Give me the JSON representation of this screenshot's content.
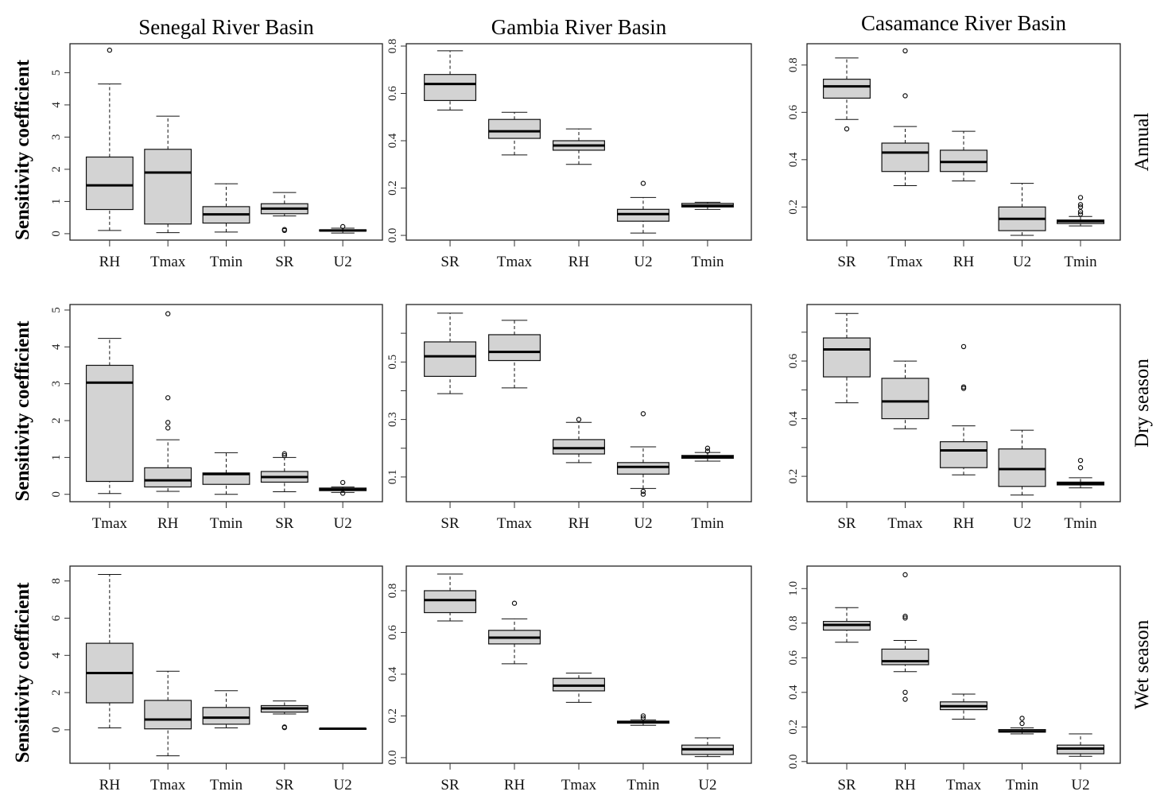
{
  "chart_data": {
    "type": "boxplot",
    "column_titles": [
      "Senegal River Basin",
      "Gambia River Basin",
      "Casamance River Basin"
    ],
    "row_labels": [
      "Annual",
      "Dry season",
      "Wet season"
    ],
    "ylabel": "Sensitivity coefficient",
    "box_color": "#d3d3d3",
    "panels": [
      {
        "basin": "Senegal River Basin",
        "period": "Annual",
        "ylim": [
          -0.2,
          5.9
        ],
        "ticks": [
          0,
          1,
          2,
          3,
          4,
          5
        ],
        "tick_labels": [
          "0",
          "1",
          "2",
          "3",
          "4",
          "5"
        ],
        "boxes": [
          {
            "label": "RH",
            "stats": [
              0.1,
              0.75,
              1.5,
              2.38,
              4.65
            ],
            "outliers": [
              5.7
            ]
          },
          {
            "label": "Tmax",
            "stats": [
              0.03,
              0.3,
              1.9,
              2.62,
              3.65
            ],
            "outliers": []
          },
          {
            "label": "Tmin",
            "stats": [
              0.05,
              0.33,
              0.6,
              0.84,
              1.55
            ],
            "outliers": []
          },
          {
            "label": "SR",
            "stats": [
              0.55,
              0.62,
              0.78,
              0.93,
              1.28
            ],
            "outliers": [
              0.1,
              0.13
            ]
          },
          {
            "label": "U2",
            "stats": [
              0.02,
              0.08,
              0.1,
              0.12,
              0.17
            ],
            "outliers": [
              0.22
            ]
          }
        ]
      },
      {
        "basin": "Gambia River Basin",
        "period": "Annual",
        "ylim": [
          -0.02,
          0.81
        ],
        "ticks": [
          0,
          0.2,
          0.4,
          0.6,
          0.8
        ],
        "tick_labels": [
          "0.0",
          "0.2",
          "0.4",
          "0.6",
          "0.8"
        ],
        "boxes": [
          {
            "label": "SR",
            "stats": [
              0.53,
              0.57,
              0.64,
              0.68,
              0.78
            ],
            "outliers": []
          },
          {
            "label": "Tmax",
            "stats": [
              0.34,
              0.41,
              0.44,
              0.49,
              0.52
            ],
            "outliers": []
          },
          {
            "label": "RH",
            "stats": [
              0.3,
              0.36,
              0.38,
              0.4,
              0.45
            ],
            "outliers": []
          },
          {
            "label": "U2",
            "stats": [
              0.01,
              0.06,
              0.09,
              0.11,
              0.16
            ],
            "outliers": [
              0.22
            ]
          },
          {
            "label": "Tmin",
            "stats": [
              0.11,
              0.12,
              0.125,
              0.135,
              0.14
            ],
            "outliers": []
          }
        ]
      },
      {
        "basin": "Casamance River Basin",
        "period": "Annual",
        "ylim": [
          0.06,
          0.89
        ],
        "ticks": [
          0.2,
          0.4,
          0.6,
          0.8
        ],
        "tick_labels": [
          "0.2",
          "0.4",
          "0.6",
          "0.8"
        ],
        "boxes": [
          {
            "label": "SR",
            "stats": [
              0.57,
              0.66,
              0.71,
              0.74,
              0.83
            ],
            "outliers": [
              0.53
            ]
          },
          {
            "label": "Tmax",
            "stats": [
              0.29,
              0.35,
              0.43,
              0.47,
              0.54
            ],
            "outliers": [
              0.67,
              0.86
            ]
          },
          {
            "label": "RH",
            "stats": [
              0.31,
              0.35,
              0.39,
              0.44,
              0.52
            ],
            "outliers": []
          },
          {
            "label": "U2",
            "stats": [
              0.08,
              0.1,
              0.15,
              0.2,
              0.3
            ],
            "outliers": []
          },
          {
            "label": "Tmin",
            "stats": [
              0.12,
              0.13,
              0.14,
              0.145,
              0.16
            ],
            "outliers": [
              0.17,
              0.18,
              0.2,
              0.21,
              0.24
            ]
          }
        ]
      },
      {
        "basin": "Senegal River Basin",
        "period": "Dry season",
        "ylim": [
          -0.2,
          5.15
        ],
        "ticks": [
          0,
          1,
          2,
          3,
          4,
          5
        ],
        "tick_labels": [
          "0",
          "1",
          "2",
          "3",
          "4",
          "5"
        ],
        "boxes": [
          {
            "label": "Tmax",
            "stats": [
              0.02,
              0.35,
              3.03,
              3.5,
              4.23
            ],
            "outliers": []
          },
          {
            "label": "RH",
            "stats": [
              0.08,
              0.2,
              0.38,
              0.72,
              1.48
            ],
            "outliers": [
              1.8,
              1.95,
              2.62,
              4.9
            ]
          },
          {
            "label": "Tmin",
            "stats": [
              0,
              0.27,
              0.55,
              0.58,
              1.13
            ],
            "outliers": []
          },
          {
            "label": "SR",
            "stats": [
              0.07,
              0.33,
              0.47,
              0.62,
              1.0
            ],
            "outliers": [
              1.05,
              1.1
            ]
          },
          {
            "label": "U2",
            "stats": [
              0.05,
              0.1,
              0.13,
              0.17,
              0.2
            ],
            "outliers": [
              0.03,
              0.32
            ]
          }
        ]
      },
      {
        "basin": "Gambia River Basin",
        "period": "Dry season",
        "ylim": [
          0.014,
          0.7
        ],
        "ticks": [
          0.1,
          0.2,
          0.3,
          0.4,
          0.5,
          0.6
        ],
        "tick_labels": [
          "0.1",
          "",
          "0.3",
          "",
          "0.5",
          ""
        ],
        "boxes": [
          {
            "label": "SR",
            "stats": [
              0.39,
              0.45,
              0.52,
              0.57,
              0.67
            ],
            "outliers": []
          },
          {
            "label": "Tmax",
            "stats": [
              0.41,
              0.505,
              0.535,
              0.595,
              0.645
            ],
            "outliers": []
          },
          {
            "label": "RH",
            "stats": [
              0.15,
              0.18,
              0.2,
              0.23,
              0.29
            ],
            "outliers": [
              0.3
            ]
          },
          {
            "label": "U2",
            "stats": [
              0.06,
              0.11,
              0.135,
              0.15,
              0.205
            ],
            "outliers": [
              0.04,
              0.05,
              0.32
            ]
          },
          {
            "label": "Tmin",
            "stats": [
              0.155,
              0.165,
              0.17,
              0.175,
              0.185
            ],
            "outliers": [
              0.19,
              0.2
            ]
          }
        ]
      },
      {
        "basin": "Casamance River Basin",
        "period": "Dry season",
        "ylim": [
          0.112,
          0.796
        ],
        "ticks": [
          0.2,
          0.3,
          0.4,
          0.5,
          0.6,
          0.7
        ],
        "tick_labels": [
          "0.2",
          "",
          "0.4",
          "",
          "0.6",
          ""
        ],
        "boxes": [
          {
            "label": "SR",
            "stats": [
              0.455,
              0.545,
              0.64,
              0.68,
              0.765
            ],
            "outliers": []
          },
          {
            "label": "Tmax",
            "stats": [
              0.365,
              0.4,
              0.46,
              0.54,
              0.6
            ],
            "outliers": []
          },
          {
            "label": "RH",
            "stats": [
              0.205,
              0.23,
              0.29,
              0.32,
              0.375
            ],
            "outliers": [
              0.505,
              0.51,
              0.65
            ]
          },
          {
            "label": "U2",
            "stats": [
              0.135,
              0.165,
              0.225,
              0.295,
              0.36
            ],
            "outliers": []
          },
          {
            "label": "Tmin",
            "stats": [
              0.16,
              0.17,
              0.175,
              0.18,
              0.195
            ],
            "outliers": [
              0.23,
              0.255
            ]
          }
        ]
      },
      {
        "basin": "Senegal River Basin",
        "period": "Wet season",
        "ylim": [
          -1.8,
          8.8
        ],
        "ticks": [
          0,
          2,
          4,
          6,
          8
        ],
        "tick_labels": [
          "0",
          "2",
          "4",
          "6",
          "8"
        ],
        "boxes": [
          {
            "label": "RH",
            "stats": [
              0.1,
              1.45,
              3.05,
              4.65,
              8.35
            ],
            "outliers": []
          },
          {
            "label": "Tmax",
            "stats": [
              -1.4,
              0.05,
              0.55,
              1.58,
              3.15
            ],
            "outliers": []
          },
          {
            "label": "Tmin",
            "stats": [
              0.1,
              0.3,
              0.65,
              1.2,
              2.1
            ],
            "outliers": []
          },
          {
            "label": "SR",
            "stats": [
              0.85,
              0.95,
              1.15,
              1.3,
              1.55
            ],
            "outliers": [
              0.12,
              0.15
            ]
          },
          {
            "label": "U2",
            "stats": [
              0.03,
              0.05,
              0.06,
              0.07,
              0.09
            ],
            "outliers": []
          }
        ]
      },
      {
        "basin": "Gambia River Basin",
        "period": "Wet season",
        "ylim": [
          -0.027,
          0.918
        ],
        "ticks": [
          0,
          0.2,
          0.4,
          0.6,
          0.8
        ],
        "tick_labels": [
          "0.0",
          "0.2",
          "0.4",
          "0.6",
          "0.8"
        ],
        "boxes": [
          {
            "label": "SR",
            "stats": [
              0.655,
              0.695,
              0.755,
              0.8,
              0.88
            ],
            "outliers": []
          },
          {
            "label": "RH",
            "stats": [
              0.45,
              0.545,
              0.575,
              0.61,
              0.665
            ],
            "outliers": [
              0.74
            ]
          },
          {
            "label": "Tmax",
            "stats": [
              0.265,
              0.32,
              0.345,
              0.38,
              0.405
            ],
            "outliers": []
          },
          {
            "label": "Tmin",
            "stats": [
              0.155,
              0.165,
              0.17,
              0.175,
              0.18
            ],
            "outliers": [
              0.19,
              0.2
            ]
          },
          {
            "label": "U2",
            "stats": [
              0.005,
              0.015,
              0.04,
              0.06,
              0.095
            ],
            "outliers": []
          }
        ]
      },
      {
        "basin": "Casamance River Basin",
        "period": "Wet season",
        "ylim": [
          -0.01,
          1.13
        ],
        "ticks": [
          0,
          0.2,
          0.4,
          0.6,
          0.8,
          1.0
        ],
        "tick_labels": [
          "0.0",
          "0.2",
          "0.4",
          "0.6",
          "0.8",
          "1.0"
        ],
        "boxes": [
          {
            "label": "SR",
            "stats": [
              0.69,
              0.76,
              0.79,
              0.81,
              0.89
            ],
            "outliers": []
          },
          {
            "label": "RH",
            "stats": [
              0.52,
              0.56,
              0.58,
              0.65,
              0.7
            ],
            "outliers": [
              0.36,
              0.4,
              0.83,
              0.84,
              1.08
            ]
          },
          {
            "label": "Tmax",
            "stats": [
              0.245,
              0.3,
              0.32,
              0.345,
              0.39
            ],
            "outliers": []
          },
          {
            "label": "Tmin",
            "stats": [
              0.16,
              0.17,
              0.175,
              0.185,
              0.195
            ],
            "outliers": [
              0.22,
              0.25
            ]
          },
          {
            "label": "U2",
            "stats": [
              0.03,
              0.045,
              0.075,
              0.095,
              0.16
            ],
            "outliers": []
          }
        ]
      }
    ]
  }
}
